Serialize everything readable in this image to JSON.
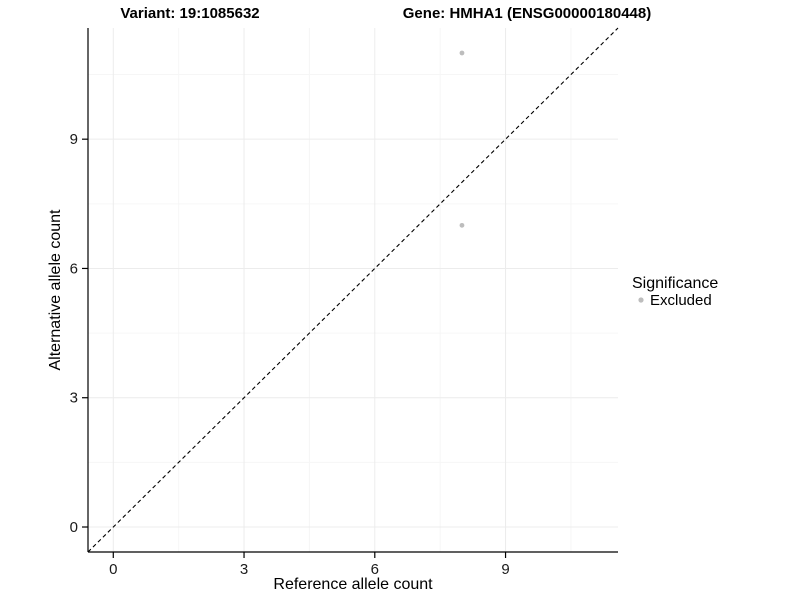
{
  "titles": {
    "variant": "Variant: 19:1085632",
    "gene": "Gene: HMHA1 (ENSG00000180448)"
  },
  "chart_data": {
    "type": "scatter",
    "title": "Variant: 19:1085632    Gene: HMHA1 (ENSG00000180448)",
    "xlabel": "Reference allele count",
    "ylabel": "Alternative allele count",
    "xlim": [
      -0.58,
      11.58
    ],
    "ylim": [
      -0.58,
      11.58
    ],
    "xticks": [
      0,
      3,
      6,
      9
    ],
    "yticks": [
      0,
      3,
      6,
      9
    ],
    "minor_ticks": [
      1.5,
      4.5,
      7.5,
      10.5
    ],
    "grid": true,
    "points": [
      {
        "x": 8,
        "y": 11,
        "series": "Excluded"
      },
      {
        "x": 8,
        "y": 7,
        "series": "Excluded"
      }
    ],
    "identity_line": {
      "style": "dashed",
      "from": [
        -0.58,
        -0.58
      ],
      "to": [
        11.58,
        11.58
      ]
    },
    "legend": {
      "title": "Significance",
      "position": "right",
      "items": [
        {
          "label": "Excluded",
          "color": "#bdbdbd"
        }
      ]
    },
    "colors": {
      "point": "#bdbdbd",
      "grid_major": "#ececec",
      "grid_minor": "#f6f6f6",
      "axis": "#000000",
      "identity_line": "#000000"
    }
  }
}
